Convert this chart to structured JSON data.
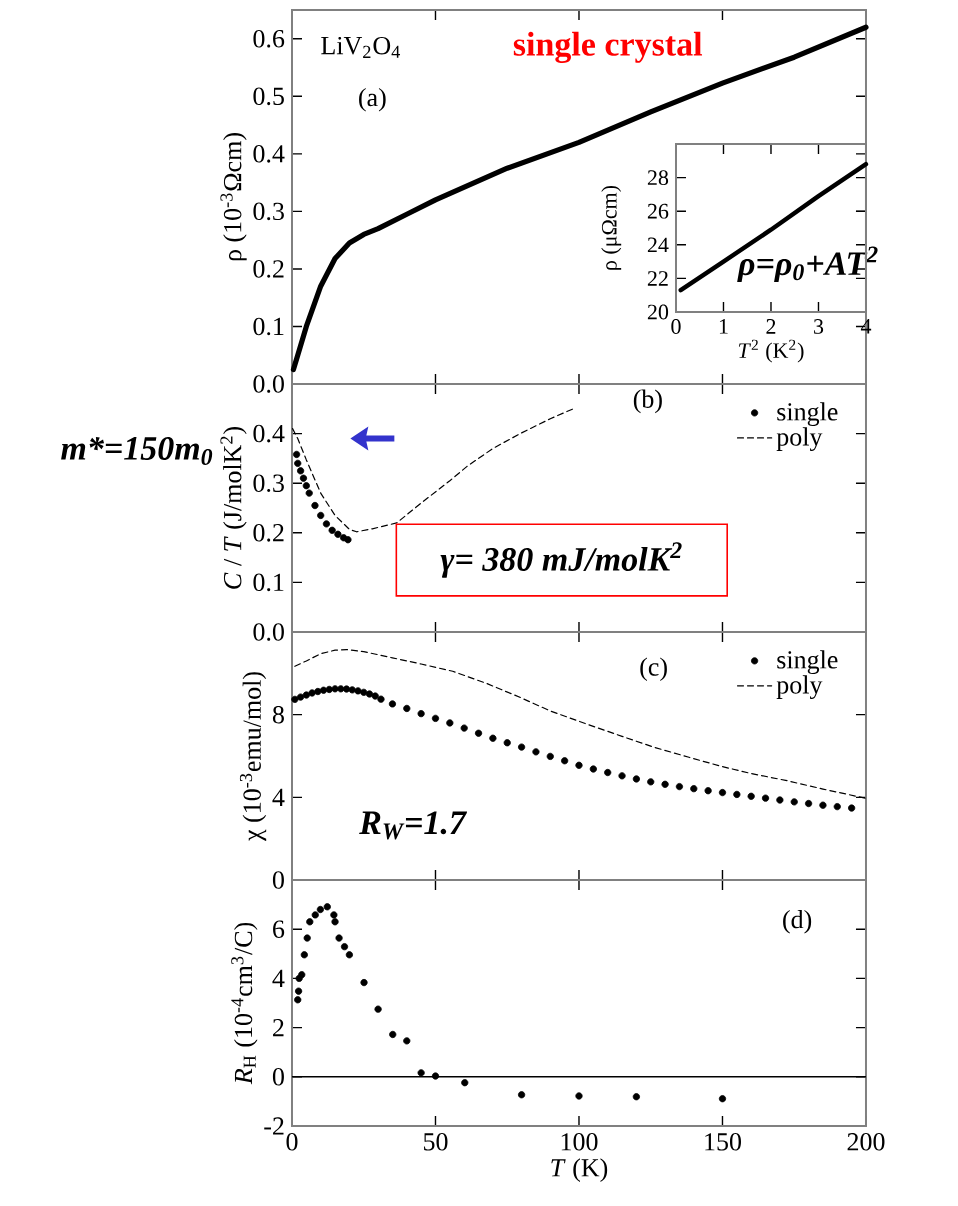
{
  "chart_data": [
    {
      "type": "line",
      "ylabel": "ρ  (10$^{-3}$Ωcm)",
      "xlim": [
        0,
        200
      ],
      "ylim": [
        0,
        0.65
      ],
      "xticks": [
        0,
        50,
        100,
        150,
        200
      ],
      "yticks": [
        {
          "value": 0,
          "label": "0.0"
        },
        {
          "value": 0.1,
          "label": "0.1"
        },
        {
          "value": 0.2,
          "label": "0.2"
        },
        {
          "value": 0.3,
          "label": "0.3"
        },
        {
          "value": 0.4,
          "label": "0.4"
        },
        {
          "value": 0.5,
          "label": "0.5"
        },
        {
          "value": 0.6,
          "label": "0.6"
        }
      ],
      "tick_labels": "y",
      "annotations": [
        "LiV$_{2}$O$_{4}$",
        "single crystal",
        "(a)",
        "ρ=ρ$_{0}$+AT$^{2}$"
      ],
      "series": [
        {
          "color": "#000000",
          "x": [
            0.5,
            2,
            5,
            10,
            15,
            20,
            25,
            30,
            40,
            50,
            75,
            100,
            125,
            150,
            175,
            200
          ],
          "values": [
            0.025,
            0.05,
            0.1,
            0.17,
            0.218,
            0.245,
            0.26,
            0.27,
            0.295,
            0.32,
            0.375,
            0.42,
            0.473,
            0.523,
            0.568,
            0.62
          ]
        }
      ]
    },
    {
      "type": "line",
      "ylabel": "ρ  (μΩcm)",
      "xlabel": "*T*$^{2}$ (K$^{2}$)",
      "xlim": [
        0,
        4
      ],
      "ylim": [
        20,
        30
      ],
      "xticks": [
        0,
        1,
        2,
        3,
        4
      ],
      "yticks": [
        20,
        22,
        24,
        26,
        28,
        {
          "value": 30,
          "label": null
        }
      ],
      "series": [
        {
          "color": "#000000",
          "x": [
            0.1,
            1,
            2,
            3,
            4
          ],
          "values": [
            21.3,
            23.0,
            24.9,
            26.9,
            28.8
          ]
        }
      ]
    },
    {
      "type": "line",
      "ylabel": "*C* / *T* (J/molK$^{2}$)",
      "xlim": [
        0,
        200
      ],
      "ylim": [
        0,
        0.5
      ],
      "xticks": [
        0,
        50,
        100,
        150,
        200
      ],
      "yticks": [
        {
          "value": 0,
          "label": "0.0"
        },
        {
          "value": 0.1,
          "label": "0.1"
        },
        {
          "value": 0.2,
          "label": "0.2"
        },
        {
          "value": 0.3,
          "label": "0.3"
        },
        {
          "value": 0.4,
          "label": "0.4"
        },
        {
          "value": 0.5,
          "label": null
        }
      ],
      "tick_labels": "y",
      "legend": "top right",
      "annotations": [
        "(b)",
        "m*=150m$_{0}$",
        "γ= 380 mJ/molK$^{2}$"
      ],
      "series": [
        {
          "name": "single",
          "type": "scatter",
          "marker": "circle",
          "color": "#000000",
          "x": [
            1.6,
            2,
            3,
            4,
            5,
            6,
            8,
            10,
            12,
            14,
            16,
            18,
            19.5
          ],
          "values": [
            0.358,
            0.34,
            0.325,
            0.31,
            0.295,
            0.28,
            0.255,
            0.235,
            0.218,
            0.205,
            0.197,
            0.19,
            0.186
          ]
        },
        {
          "name": "poly",
          "type": "line",
          "line_style": "dashed",
          "color": "#000000",
          "x": [
            0.2,
            2,
            5,
            10,
            15,
            20,
            22.5,
            28,
            36.5,
            45,
            55,
            61,
            70,
            79.5,
            90,
            98
          ],
          "values": [
            0.41,
            0.39,
            0.347,
            0.28,
            0.235,
            0.207,
            0.202,
            0.208,
            0.22,
            0.26,
            0.305,
            0.334,
            0.37,
            0.4,
            0.43,
            0.45
          ]
        }
      ]
    },
    {
      "type": "line",
      "ylabel": "χ (10$^{-3}$emu/mol)",
      "xlim": [
        0,
        200
      ],
      "ylim": [
        0,
        12
      ],
      "xticks": [
        0,
        50,
        100,
        150,
        200
      ],
      "yticks": [
        0,
        4,
        8,
        {
          "value": 12,
          "label": null
        }
      ],
      "tick_labels": "y",
      "legend": "top right",
      "annotations": [
        "(c)",
        "R$_{W}$=1.7"
      ],
      "series": [
        {
          "name": "single",
          "type": "scatter",
          "marker": "circle",
          "color": "#000000",
          "x": [
            1,
            3,
            5,
            7,
            9,
            11,
            13,
            15,
            17,
            19,
            21,
            23,
            25,
            27,
            29,
            31,
            35,
            40,
            45,
            50,
            55,
            60,
            65,
            70,
            75,
            80,
            85,
            90,
            95,
            100,
            105,
            110,
            115,
            120,
            125,
            130,
            135,
            140,
            145,
            150,
            155,
            160,
            165,
            170,
            175,
            180,
            185,
            190,
            195
          ],
          "values": [
            8.74,
            8.85,
            8.95,
            9.05,
            9.12,
            9.18,
            9.22,
            9.25,
            9.25,
            9.24,
            9.2,
            9.15,
            9.08,
            9.0,
            8.9,
            8.75,
            8.52,
            8.3,
            8.05,
            7.82,
            7.6,
            7.35,
            7.1,
            6.86,
            6.64,
            6.43,
            6.2,
            5.98,
            5.77,
            5.55,
            5.37,
            5.2,
            5.04,
            4.89,
            4.75,
            4.63,
            4.52,
            4.42,
            4.32,
            4.23,
            4.14,
            4.05,
            3.96,
            3.87,
            3.78,
            3.7,
            3.62,
            3.55,
            3.48
          ]
        },
        {
          "name": "poly",
          "type": "line",
          "line_style": "dashed",
          "color": "#000000",
          "x": [
            1,
            5,
            10,
            15,
            19,
            25,
            35,
            45,
            56,
            68,
            79.4,
            90,
            102.6,
            115,
            126,
            138,
            149,
            160,
            172,
            185,
            200
          ],
          "values": [
            10.34,
            10.6,
            10.95,
            11.12,
            11.15,
            11.05,
            10.75,
            10.45,
            10.1,
            9.5,
            8.84,
            8.18,
            7.55,
            6.95,
            6.43,
            5.95,
            5.52,
            5.15,
            4.82,
            4.4,
            3.95
          ]
        }
      ]
    },
    {
      "type": "scatter",
      "marker": "circle",
      "xlabel": "*T* (K)",
      "ylabel": "*R*$_{H}$ (10$^{-4}$cm$^{3}$/C)",
      "xlim": [
        0,
        200
      ],
      "ylim": [
        -2,
        8
      ],
      "xticks": [
        0,
        50,
        100,
        150,
        200
      ],
      "yticks": [
        -2,
        0,
        2,
        4,
        6,
        {
          "value": 8,
          "label": null
        }
      ],
      "annotations": [
        "(d)"
      ],
      "ref_lines": [
        {
          "axis": "y",
          "value": 0
        }
      ],
      "series": [
        {
          "color": "#000000",
          "x": [
            2.0,
            2.3,
            2.5,
            3.4,
            4.3,
            5.3,
            6.2,
            8.1,
            9.9,
            12.3,
            14.6,
            15,
            16.4,
            18.3,
            20,
            25.1,
            30,
            35.1,
            40,
            45,
            50,
            60.2,
            80,
            100,
            120,
            150
          ],
          "values": [
            3.13,
            3.48,
            4.0,
            4.15,
            4.96,
            5.64,
            6.3,
            6.58,
            6.8,
            6.91,
            6.58,
            6.3,
            5.64,
            5.29,
            4.96,
            3.83,
            2.75,
            1.72,
            1.46,
            0.16,
            0.03,
            -0.24,
            -0.73,
            -0.78,
            -0.81,
            -0.89
          ]
        }
      ]
    }
  ]
}
